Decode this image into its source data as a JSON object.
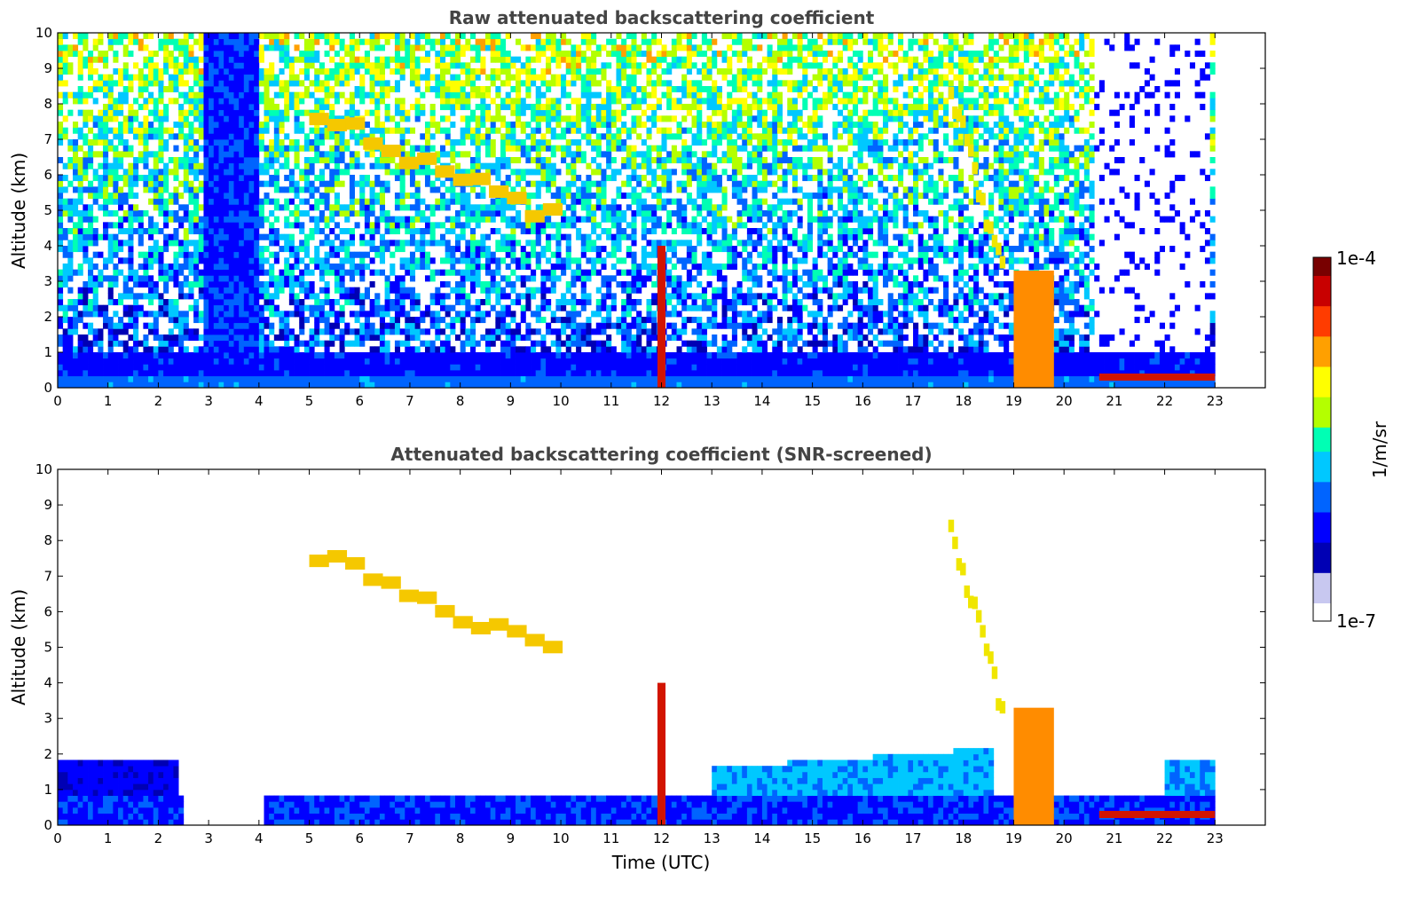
{
  "chart_data": [
    {
      "type": "heatmap",
      "panel": "top",
      "title": "Raw attenuated backscattering coefficient",
      "xlabel": "",
      "ylabel": "Altitude (km)",
      "xlim": [
        0,
        24
      ],
      "ylim": [
        0,
        10
      ],
      "xticks": [
        "0",
        "1",
        "2",
        "3",
        "4",
        "5",
        "6",
        "7",
        "8",
        "9",
        "10",
        "11",
        "12",
        "13",
        "14",
        "15",
        "16",
        "17",
        "18",
        "19",
        "20",
        "21",
        "22",
        "23"
      ],
      "yticks": [
        "0",
        "1",
        "2",
        "3",
        "4",
        "5",
        "6",
        "7",
        "8",
        "9",
        "10"
      ],
      "features": [
        {
          "name": "boundary-layer",
          "t_start": 0,
          "t_end": 23,
          "alt_top_km": 1.0,
          "level": "high-blue"
        },
        {
          "name": "cirrus-layer",
          "t_start": 5,
          "t_end": 10,
          "alt_range_km": [
            4.8,
            7.8
          ],
          "level": "yellow-orange"
        },
        {
          "name": "cloud-column",
          "t": 12.0,
          "alt_range_km": [
            0,
            4.0
          ],
          "level": "red"
        },
        {
          "name": "falling-cloud",
          "t_start": 17.7,
          "t_end": 18.8,
          "alt_range_km": [
            3.0,
            8.5
          ],
          "level": "yellow"
        },
        {
          "name": "low-cloud-block",
          "t_start": 19.0,
          "t_end": 19.8,
          "alt_range_km": [
            0,
            3.3
          ],
          "level": "orange"
        },
        {
          "name": "low-stratus",
          "t_start": 20.7,
          "t_end": 23,
          "alt_range_km": [
            0.2,
            0.4
          ],
          "level": "red"
        }
      ]
    },
    {
      "type": "heatmap",
      "panel": "bottom",
      "title": "Attenuated backscattering coefficient (SNR-screened)",
      "xlabel": "Time (UTC)",
      "ylabel": "Altitude (km)",
      "xlim": [
        0,
        24
      ],
      "ylim": [
        0,
        10
      ],
      "xticks": [
        "0",
        "1",
        "2",
        "3",
        "4",
        "5",
        "6",
        "7",
        "8",
        "9",
        "10",
        "11",
        "12",
        "13",
        "14",
        "15",
        "16",
        "17",
        "18",
        "19",
        "20",
        "21",
        "22",
        "23"
      ],
      "yticks": [
        "0",
        "1",
        "2",
        "3",
        "4",
        "5",
        "6",
        "7",
        "8",
        "9",
        "10"
      ],
      "colorbar": {
        "label": "1/m/sr",
        "min_label": "1e-7",
        "max_label": "1e-4",
        "colormap": [
          "#ffffff",
          "#c8c8f0",
          "#0000b4",
          "#0000ff",
          "#0064ff",
          "#00c8ff",
          "#00ffb4",
          "#b4ff00",
          "#ffff00",
          "#ffa000",
          "#ff3c00",
          "#c80000",
          "#780000"
        ]
      }
    }
  ]
}
